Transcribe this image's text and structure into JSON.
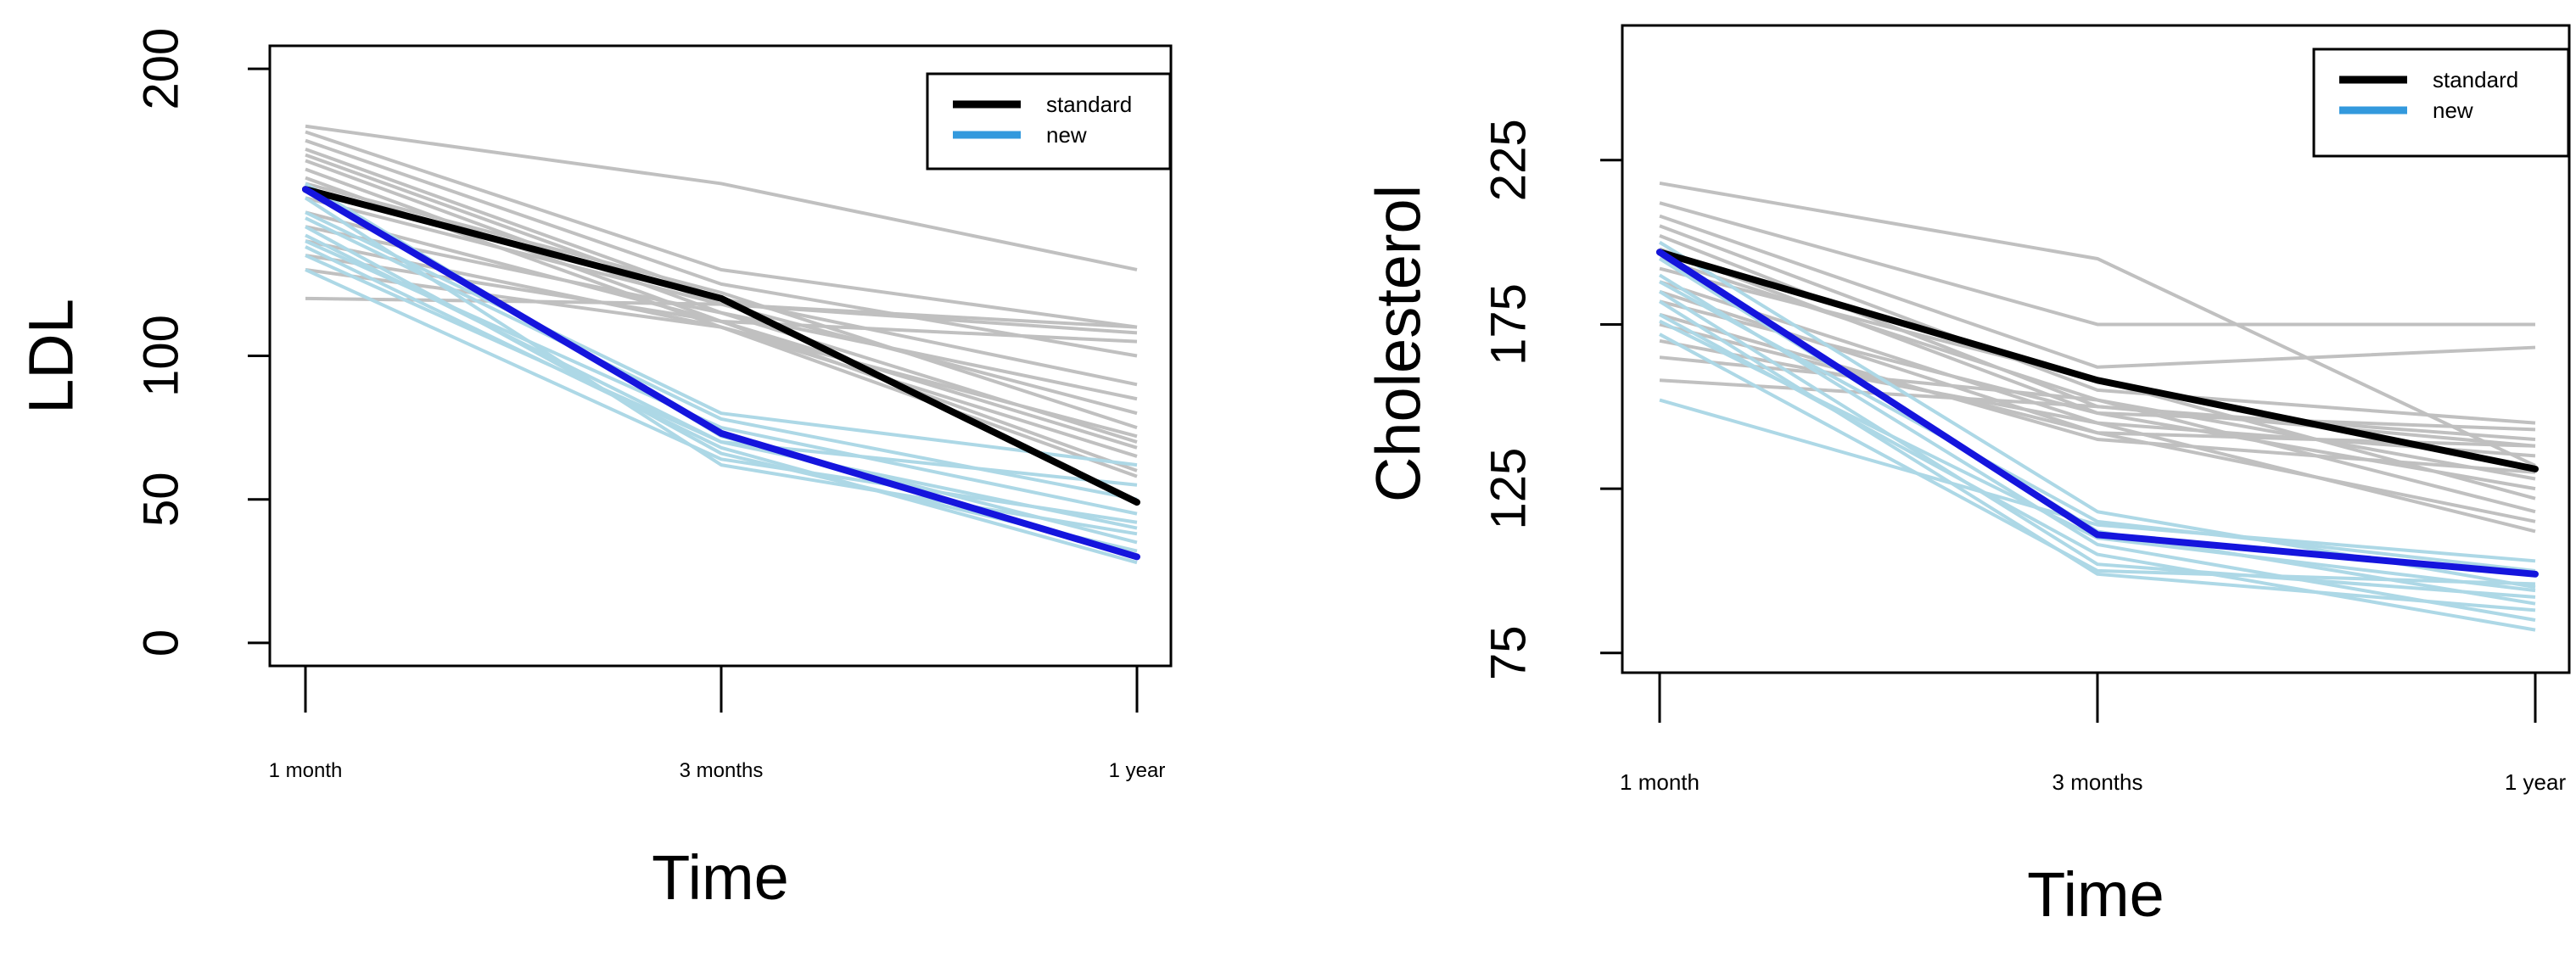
{
  "chart_data": [
    {
      "type": "line",
      "ylabel": "LDL",
      "xlabel": "Time",
      "categories": [
        "1 month",
        "3 months",
        "1 year"
      ],
      "ylim": [
        -8,
        208
      ],
      "yticks": [
        0,
        50,
        100,
        200
      ],
      "legend": {
        "position": "top-right",
        "entries": [
          {
            "label": "standard",
            "color": "#000000"
          },
          {
            "label": "new",
            "color": "#3399dd"
          }
        ]
      },
      "series": [
        {
          "name": "standard",
          "color": "#000000",
          "values": [
            158,
            120,
            49
          ]
        },
        {
          "name": "new",
          "color": "#1515dd",
          "values": [
            158,
            73,
            30
          ]
        }
      ],
      "individual_standard": {
        "color": "#c0c0c0",
        "values": [
          [
            180,
            160,
            130
          ],
          [
            178,
            130,
            110
          ],
          [
            175,
            125,
            100
          ],
          [
            172,
            120,
            90
          ],
          [
            170,
            118,
            80
          ],
          [
            168,
            115,
            70
          ],
          [
            165,
            112,
            60
          ],
          [
            162,
            110,
            65
          ],
          [
            160,
            122,
            75
          ],
          [
            155,
            118,
            110
          ],
          [
            150,
            112,
            105
          ],
          [
            145,
            115,
            85
          ],
          [
            140,
            110,
            72
          ],
          [
            135,
            112,
            68
          ],
          [
            130,
            110,
            58
          ],
          [
            120,
            118,
            108
          ]
        ]
      },
      "individual_new": {
        "color": "#add8e6",
        "values": [
          [
            150,
            80,
            62
          ],
          [
            140,
            75,
            45
          ],
          [
            135,
            70,
            40
          ],
          [
            160,
            72,
            35
          ],
          [
            145,
            66,
            32
          ],
          [
            155,
            62,
            38
          ],
          [
            130,
            64,
            42
          ],
          [
            148,
            78,
            50
          ],
          [
            138,
            68,
            28
          ],
          [
            142,
            70,
            55
          ]
        ]
      }
    },
    {
      "type": "line",
      "ylabel": "Cholesterol",
      "xlabel": "Time",
      "categories": [
        "1 month",
        "3 months",
        "1 year"
      ],
      "ylim": [
        69,
        266
      ],
      "yticks": [
        75,
        125,
        175,
        225
      ],
      "legend": {
        "position": "top-right",
        "entries": [
          {
            "label": "standard",
            "color": "#000000"
          },
          {
            "label": "new",
            "color": "#3399dd"
          }
        ]
      },
      "series": [
        {
          "name": "standard",
          "color": "#000000",
          "values": [
            197,
            158,
            131
          ]
        },
        {
          "name": "new",
          "color": "#1515dd",
          "values": [
            197,
            111,
            99
          ]
        }
      ],
      "individual_standard": {
        "color": "#c0c0c0",
        "values": [
          [
            218,
            195,
            132
          ],
          [
            212,
            175,
            175
          ],
          [
            208,
            162,
            168
          ],
          [
            205,
            155,
            145
          ],
          [
            202,
            150,
            140
          ],
          [
            198,
            148,
            125
          ],
          [
            195,
            152,
            118
          ],
          [
            192,
            158,
            122
          ],
          [
            188,
            145,
            112
          ],
          [
            185,
            142,
            138
          ],
          [
            182,
            148,
            143
          ],
          [
            178,
            140,
            130
          ],
          [
            175,
            142,
            115
          ],
          [
            170,
            145,
            135
          ],
          [
            165,
            152,
            128
          ],
          [
            158,
            150,
            138
          ]
        ]
      },
      "individual_new": {
        "color": "#add8e6",
        "values": [
          [
            200,
            118,
            95
          ],
          [
            195,
            112,
            90
          ],
          [
            190,
            108,
            85
          ],
          [
            185,
            102,
            92
          ],
          [
            182,
            99,
            88
          ],
          [
            178,
            105,
            82
          ],
          [
            172,
            100,
            96
          ],
          [
            188,
            115,
            100
          ],
          [
            176,
            110,
            94
          ],
          [
            152,
            114,
            103
          ]
        ]
      }
    }
  ]
}
